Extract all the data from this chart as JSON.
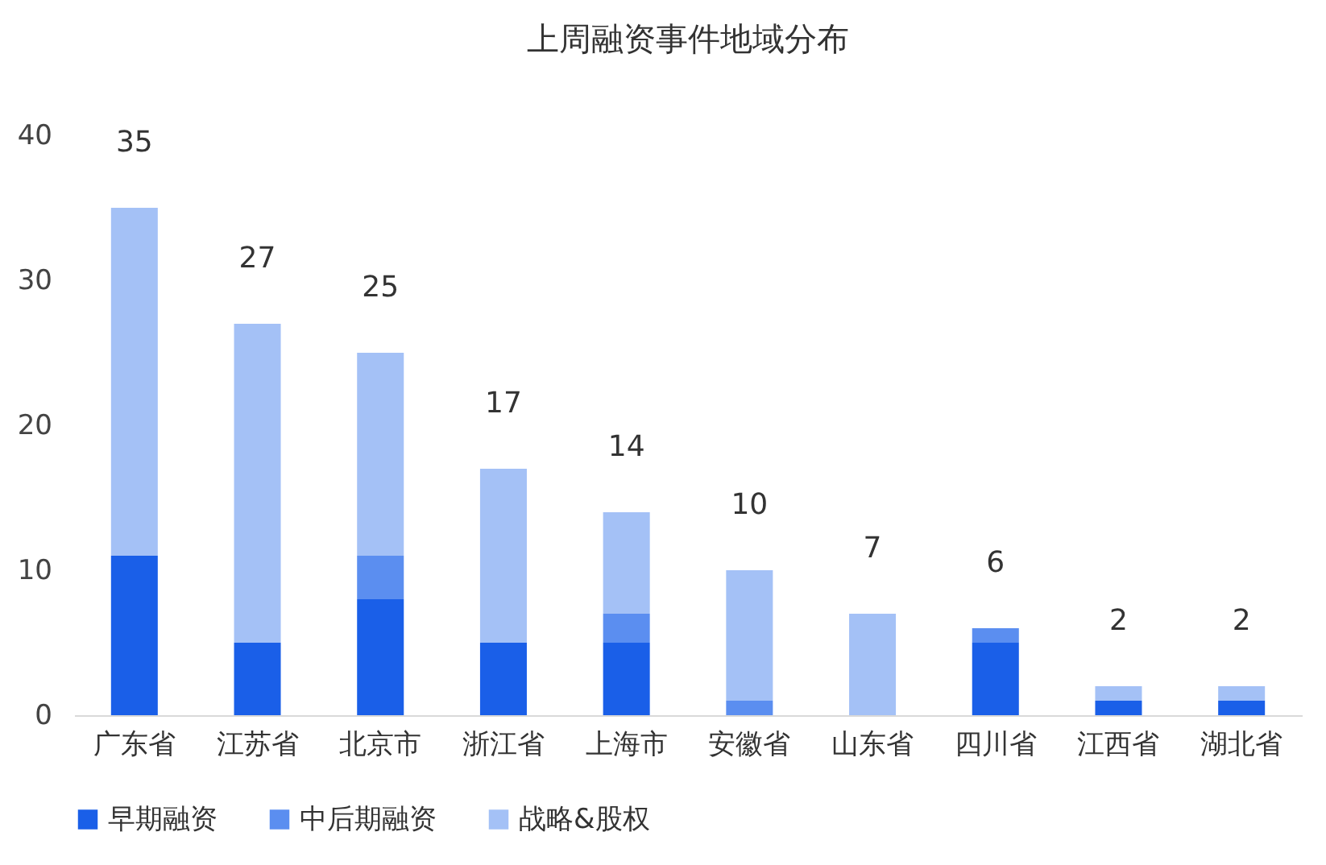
{
  "chart_data": {
    "type": "bar",
    "title": "上周融资事件地域分布",
    "stacked": true,
    "categories": [
      "广东省",
      "江苏省",
      "北京市",
      "浙江省",
      "上海市",
      "安徽省",
      "山东省",
      "四川省",
      "江西省",
      "湖北省"
    ],
    "series": [
      {
        "name": "早期融资",
        "color": "#1a5fe8",
        "values": [
          11,
          5,
          8,
          5,
          5,
          0,
          0,
          5,
          1,
          1
        ]
      },
      {
        "name": "中后期融资",
        "color": "#5b8ef0",
        "values": [
          0,
          0,
          3,
          0,
          2,
          1,
          0,
          1,
          0,
          0
        ]
      },
      {
        "name": "战略&股权",
        "color": "#a4c1f6",
        "values": [
          24,
          22,
          14,
          12,
          7,
          9,
          7,
          0,
          1,
          1
        ]
      }
    ],
    "totals": [
      "35",
      "27",
      "25",
      "17",
      "14",
      "10",
      "7",
      "6",
      "2",
      "2"
    ],
    "ylim": [
      0,
      40
    ],
    "yticks": [
      0,
      10,
      20,
      30,
      40
    ],
    "grid": false,
    "legend": "bottom"
  }
}
